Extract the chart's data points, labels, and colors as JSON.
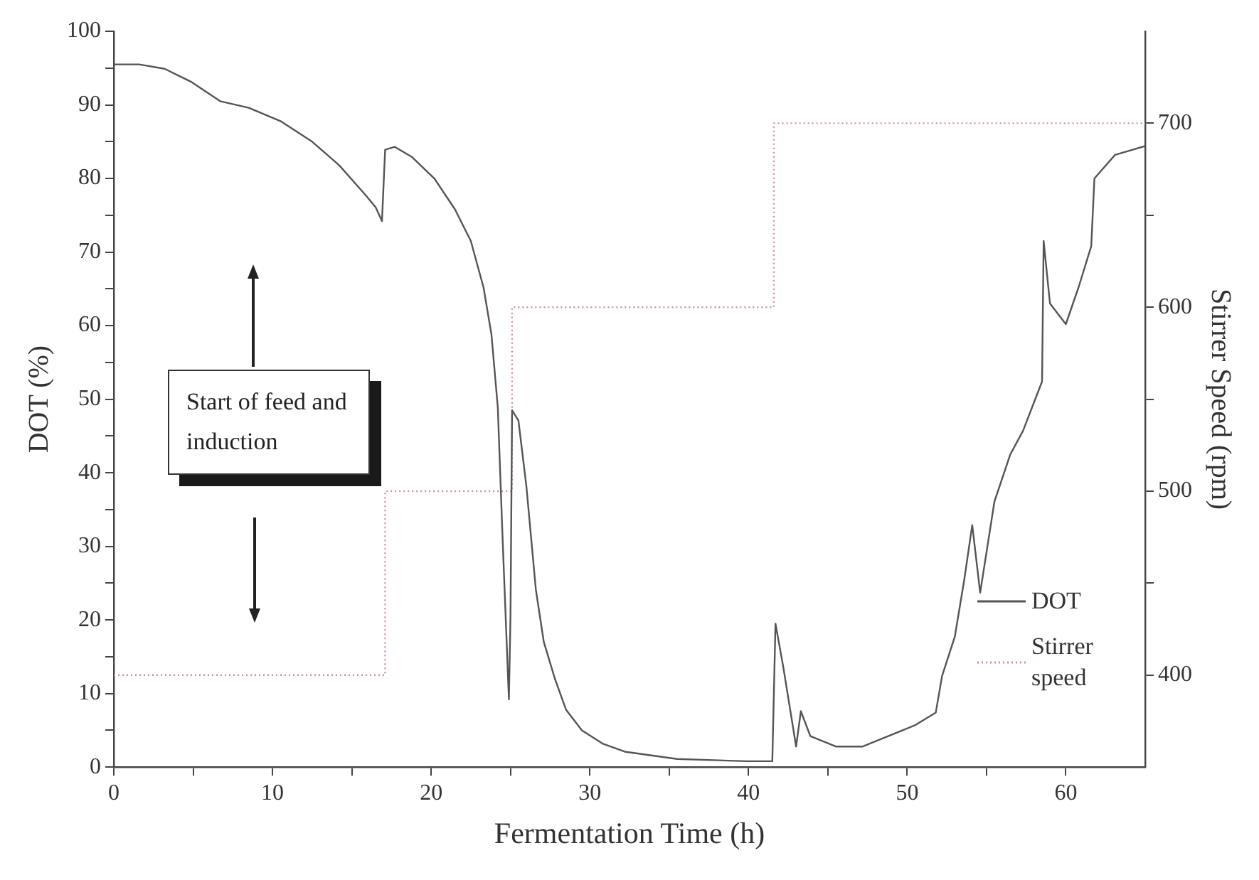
{
  "chart_data": {
    "type": "line",
    "xlabel": "Fermentation Time (h)",
    "ylabel": "DOT (%)",
    "y2label": "Stirrer Speed (rpm)",
    "xlim": [
      0,
      65
    ],
    "xticks": [
      0,
      {
        "value": 5,
        "label": null
      },
      10,
      {
        "value": 15,
        "label": null
      },
      20,
      {
        "value": 25,
        "label": null
      },
      30,
      {
        "value": 35,
        "label": null
      },
      40,
      {
        "value": 45,
        "label": null
      },
      50,
      {
        "value": 55,
        "label": null
      },
      60
    ],
    "ylim": [
      0,
      100
    ],
    "yticks": [
      0,
      {
        "value": 5,
        "label": null
      },
      10,
      {
        "value": 15,
        "label": null
      },
      20,
      {
        "value": 25,
        "label": null
      },
      30,
      {
        "value": 35,
        "label": null
      },
      40,
      {
        "value": 45,
        "label": null
      },
      50,
      {
        "value": 55,
        "label": null
      },
      60,
      {
        "value": 65,
        "label": null
      },
      70,
      {
        "value": 75,
        "label": null
      },
      80,
      {
        "value": 85,
        "label": null
      },
      90,
      {
        "value": 95,
        "label": null
      },
      100
    ],
    "y2lim": [
      350,
      750
    ],
    "y2ticks": [
      400,
      {
        "value": 450,
        "label": null
      },
      500,
      {
        "value": 550,
        "label": null
      },
      600,
      {
        "value": 650,
        "label": null
      },
      700
    ],
    "grid": false,
    "legend": "bottom right",
    "annotations": [
      "Start of feed and induction"
    ],
    "series": [
      {
        "name": "DOT",
        "type": "line",
        "color": "#555555",
        "line_style": "solid",
        "x": [
          0,
          1.6,
          3.2,
          4.9,
          6.7,
          8.5,
          10.5,
          12.5,
          14.2,
          15.8,
          16.5,
          16.9,
          17.1,
          17.7,
          18.8,
          20.2,
          21.5,
          22.5,
          23.3,
          23.8,
          24.2,
          24.5,
          24.9,
          25.0,
          25.1,
          25.5,
          26.0,
          26.6,
          27.1,
          27.8,
          28.5,
          29.5,
          30.8,
          32.2,
          35.5,
          39.9,
          41.5,
          41.7,
          42.2,
          43.0,
          43.3,
          43.9,
          45.5,
          47.2,
          48.8,
          50.5,
          51.8,
          52.2,
          53.0,
          53.6,
          54.1,
          54.6,
          55.5,
          56.5,
          57.3,
          58.5,
          58.6,
          59.0,
          60.0,
          60.8,
          61.6,
          61.8,
          63.1,
          65
        ],
        "values": [
          95.5,
          95.5,
          94.9,
          93.1,
          90.5,
          89.6,
          87.8,
          85,
          81.8,
          77.9,
          76.1,
          74.2,
          83.9,
          84.3,
          82.9,
          80,
          75.8,
          71.5,
          65.2,
          58.8,
          48.9,
          31.2,
          9.2,
          20.5,
          48.5,
          47.1,
          38.2,
          24.1,
          17,
          12,
          7.8,
          5,
          3.2,
          2.1,
          1.1,
          0.8,
          0.8,
          19.5,
          13.5,
          2.8,
          7.6,
          4.2,
          2.8,
          2.8,
          4.2,
          5.7,
          7.4,
          12.4,
          17.7,
          25.5,
          32.9,
          23.7,
          36.1,
          42.5,
          45.7,
          52.4,
          71.5,
          63,
          60.2,
          65.2,
          70.8,
          80,
          83.2,
          84.4
        ]
      },
      {
        "name": "Stirrer speed",
        "type": "step",
        "axis": "y2",
        "color": "#d88c98",
        "line_style": "dotted",
        "x": [
          0,
          17.1,
          25.1,
          41.6,
          65
        ],
        "values": [
          400,
          500,
          600,
          700,
          700
        ]
      }
    ]
  }
}
